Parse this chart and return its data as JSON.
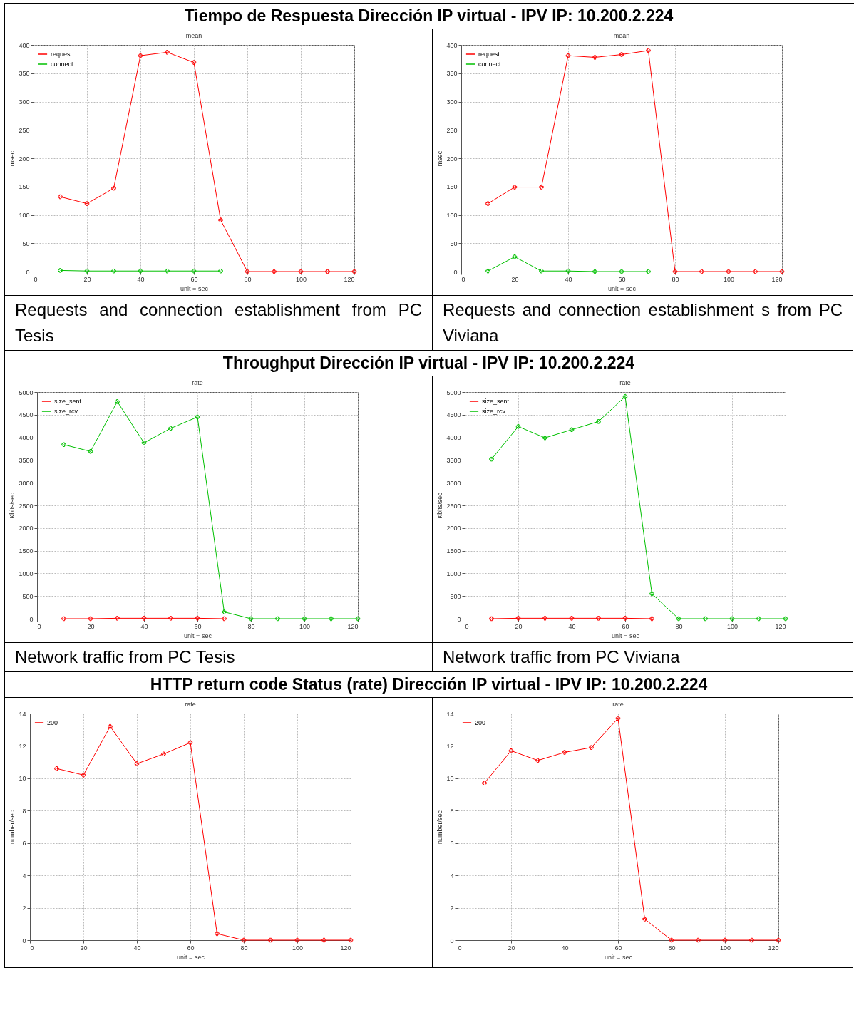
{
  "chart_data": [
    {
      "type": "line",
      "title": "mean",
      "xlabel": "unit = sec",
      "ylabel": "msec",
      "x": [
        10,
        20,
        30,
        40,
        50,
        60,
        70,
        80,
        90,
        100,
        110,
        120
      ],
      "xlim": [
        0,
        120
      ],
      "xticks": [
        0,
        20,
        40,
        60,
        80,
        100,
        120
      ],
      "ylim": [
        0,
        400
      ],
      "yticks": [
        0,
        50,
        100,
        150,
        200,
        250,
        300,
        350,
        400
      ],
      "grid": true,
      "legend": "top left",
      "marker": "cross",
      "series": [
        {
          "name": "request",
          "color": "#ff0000",
          "values": [
            132,
            120,
            147,
            381,
            387,
            369,
            91,
            0,
            0,
            0,
            0,
            0
          ]
        },
        {
          "name": "connect",
          "color": "#00c000",
          "values": [
            2,
            1,
            1,
            1,
            1,
            1,
            1,
            null,
            null,
            null,
            null,
            null
          ]
        }
      ],
      "annotations": [
        "Tiempo de Respuesta  Dirección IP virtual - IPV IP: 10.200.2.224",
        "Requests and connection establishment from PC Tesis"
      ]
    },
    {
      "type": "line",
      "title": "mean",
      "xlabel": "unit = sec",
      "ylabel": "msec",
      "x": [
        10,
        20,
        30,
        40,
        50,
        60,
        70,
        80,
        90,
        100,
        110,
        120
      ],
      "xlim": [
        0,
        120
      ],
      "xticks": [
        0,
        20,
        40,
        60,
        80,
        100,
        120
      ],
      "ylim": [
        0,
        400
      ],
      "yticks": [
        0,
        50,
        100,
        150,
        200,
        250,
        300,
        350,
        400
      ],
      "grid": true,
      "legend": "top left",
      "marker": "cross",
      "series": [
        {
          "name": "request",
          "color": "#ff0000",
          "values": [
            120,
            149,
            149,
            381,
            378,
            383,
            390,
            0,
            0,
            0,
            0,
            0
          ]
        },
        {
          "name": "connect",
          "color": "#00c000",
          "values": [
            1,
            26,
            1,
            1,
            0,
            0,
            0,
            null,
            null,
            null,
            null,
            null
          ]
        }
      ],
      "annotations": [
        "Requests and connection establishment s from PC Viviana"
      ]
    },
    {
      "type": "line",
      "title": "rate",
      "xlabel": "unit = sec",
      "ylabel": "Kbits/sec",
      "x": [
        10,
        20,
        30,
        40,
        50,
        60,
        70,
        80,
        90,
        100,
        110,
        120
      ],
      "xlim": [
        0,
        120
      ],
      "xticks": [
        0,
        20,
        40,
        60,
        80,
        100,
        120
      ],
      "ylim": [
        0,
        5000
      ],
      "yticks": [
        0,
        500,
        1000,
        1500,
        2000,
        2500,
        3000,
        3500,
        4000,
        4500,
        5000
      ],
      "grid": true,
      "legend": "top left",
      "marker": "cross",
      "series": [
        {
          "name": "size_sent",
          "color": "#ff0000",
          "values": [
            0,
            0,
            10,
            10,
            10,
            10,
            0,
            null,
            null,
            null,
            null,
            null
          ]
        },
        {
          "name": "size_rcv",
          "color": "#00c000",
          "values": [
            3840,
            3690,
            4790,
            3880,
            4200,
            4450,
            150,
            0,
            0,
            0,
            0,
            0
          ]
        }
      ],
      "annotations": [
        "Throughput  Dirección IP virtual - IPV IP: 10.200.2.224",
        "Network traffic from PC Tesis"
      ]
    },
    {
      "type": "line",
      "title": "rate",
      "xlabel": "unit = sec",
      "ylabel": "Kbits/sec",
      "x": [
        10,
        20,
        30,
        40,
        50,
        60,
        70,
        80,
        90,
        100,
        110,
        120
      ],
      "xlim": [
        0,
        120
      ],
      "xticks": [
        0,
        20,
        40,
        60,
        80,
        100,
        120
      ],
      "ylim": [
        0,
        5000
      ],
      "yticks": [
        0,
        500,
        1000,
        1500,
        2000,
        2500,
        3000,
        3500,
        4000,
        4500,
        5000
      ],
      "grid": true,
      "legend": "top left",
      "marker": "cross",
      "series": [
        {
          "name": "size_sent",
          "color": "#ff0000",
          "values": [
            0,
            10,
            10,
            10,
            10,
            10,
            0,
            null,
            null,
            null,
            null,
            null
          ]
        },
        {
          "name": "size_rcv",
          "color": "#00c000",
          "values": [
            3520,
            4240,
            3990,
            4170,
            4350,
            4900,
            550,
            0,
            0,
            0,
            0,
            0
          ]
        }
      ],
      "annotations": [
        "Network traffic from PC Viviana"
      ]
    },
    {
      "type": "line",
      "title": "rate",
      "xlabel": "unit = sec",
      "ylabel": "number/sec",
      "x": [
        10,
        20,
        30,
        40,
        50,
        60,
        70,
        80,
        90,
        100,
        110,
        120
      ],
      "xlim": [
        0,
        120
      ],
      "xticks": [
        0,
        20,
        40,
        60,
        80,
        100,
        120
      ],
      "ylim": [
        0,
        14
      ],
      "yticks": [
        0,
        2,
        4,
        6,
        8,
        10,
        12,
        14
      ],
      "grid": true,
      "legend": "top left",
      "marker": "cross",
      "series": [
        {
          "name": "200",
          "color": "#ff0000",
          "values": [
            10.6,
            10.2,
            13.2,
            10.9,
            11.5,
            12.2,
            0.4,
            0,
            0,
            0,
            0,
            0
          ]
        }
      ],
      "annotations": [
        "HTTP return code Status (rate)  Dirección IP virtual - IPV IP: 10.200.2.224"
      ]
    },
    {
      "type": "line",
      "title": "rate",
      "xlabel": "unit = sec",
      "ylabel": "number/sec",
      "x": [
        10,
        20,
        30,
        40,
        50,
        60,
        70,
        80,
        90,
        100,
        110,
        120
      ],
      "xlim": [
        0,
        120
      ],
      "xticks": [
        0,
        20,
        40,
        60,
        80,
        100,
        120
      ],
      "ylim": [
        0,
        14
      ],
      "yticks": [
        0,
        2,
        4,
        6,
        8,
        10,
        12,
        14
      ],
      "grid": true,
      "legend": "top left",
      "marker": "cross",
      "series": [
        {
          "name": "200",
          "color": "#ff0000",
          "values": [
            9.7,
            11.7,
            11.1,
            11.6,
            11.9,
            13.7,
            1.3,
            0,
            0,
            0,
            0,
            0
          ]
        }
      ]
    }
  ]
}
